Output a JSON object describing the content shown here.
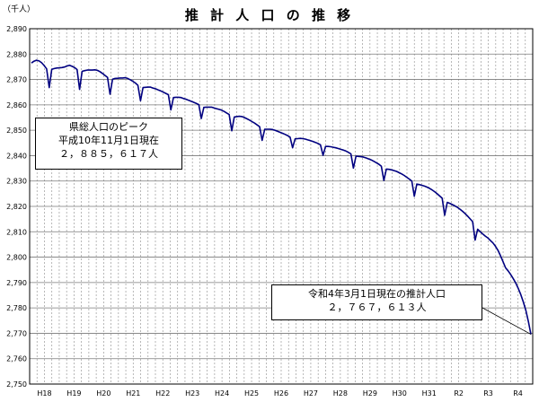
{
  "chart_data": {
    "type": "line",
    "title": "推 計 人 口 の 推 移",
    "unit_label": "（千人）",
    "ylim": [
      2760,
      2890
    ],
    "y_ticks": [
      "2,890",
      "2,880",
      "2,870",
      "2,860",
      "2,850",
      "2,840",
      "2,830",
      "2,820",
      "2,810",
      "2,800",
      "2,790",
      "2,780",
      "2,770",
      "2,760",
      "2,750"
    ],
    "x_ticks": [
      "H18",
      "H19",
      "H20",
      "H21",
      "H22",
      "H23",
      "H24",
      "H25",
      "H26",
      "H27",
      "H28",
      "H29",
      "H30",
      "H31",
      "R2",
      "R3",
      "R4"
    ],
    "grid": true,
    "line_color": "#000080",
    "series": [
      {
        "values": [
          2876.5,
          2877.2,
          2877.6,
          2877.3,
          2876.6,
          2875.5,
          2874.2,
          2866.8,
          2874.0,
          2874.3,
          2874.5,
          2874.6,
          2874.7,
          2874.9,
          2875.3,
          2875.6,
          2875.2,
          2874.7,
          2873.9,
          2866.1,
          2873.2,
          2873.5,
          2873.7,
          2873.7,
          2873.7,
          2873.8,
          2873.6,
          2873.1,
          2872.4,
          2871.6,
          2870.8,
          2864.2,
          2870.1,
          2870.4,
          2870.5,
          2870.6,
          2870.6,
          2870.7,
          2870.4,
          2869.9,
          2869.3,
          2868.6,
          2867.7,
          2861.6,
          2866.8,
          2866.9,
          2867.0,
          2867.0,
          2866.6,
          2866.3,
          2865.9,
          2865.5,
          2865.0,
          2864.5,
          2864.0,
          2858.0,
          2862.9,
          2863.0,
          2863.0,
          2862.9,
          2862.5,
          2862.2,
          2861.8,
          2861.4,
          2861.0,
          2860.6,
          2860.1,
          2854.6,
          2859.0,
          2859.1,
          2859.1,
          2859.1,
          2858.8,
          2858.5,
          2858.2,
          2857.9,
          2857.4,
          2856.8,
          2856.2,
          2849.8,
          2855.2,
          2855.4,
          2855.5,
          2855.4,
          2855.0,
          2854.5,
          2854.0,
          2853.4,
          2852.8,
          2852.1,
          2851.4,
          2846.0,
          2850.4,
          2850.4,
          2850.4,
          2850.3,
          2850.0,
          2849.6,
          2849.2,
          2848.8,
          2848.4,
          2847.9,
          2847.3,
          2843.1,
          2846.6,
          2846.7,
          2846.8,
          2846.7,
          2846.5,
          2846.2,
          2845.9,
          2845.6,
          2845.2,
          2844.8,
          2844.3,
          2840.1,
          2843.6,
          2843.6,
          2843.5,
          2843.3,
          2843.1,
          2842.8,
          2842.5,
          2842.2,
          2841.8,
          2841.3,
          2840.7,
          2835.1,
          2839.8,
          2839.7,
          2839.6,
          2839.4,
          2839.1,
          2838.7,
          2838.3,
          2837.8,
          2837.2,
          2836.6,
          2835.8,
          2830.2,
          2834.7,
          2834.6,
          2834.4,
          2834.1,
          2833.8,
          2833.3,
          2832.8,
          2832.2,
          2831.5,
          2830.8,
          2830.0,
          2824.0,
          2828.8,
          2828.6,
          2828.3,
          2828.0,
          2827.6,
          2827.1,
          2826.5,
          2825.8,
          2825.0,
          2824.1,
          2823.2,
          2816.5,
          2821.6,
          2821.2,
          2820.7,
          2820.2,
          2819.6,
          2818.9,
          2818.1,
          2817.2,
          2816.2,
          2815.1,
          2814.0,
          2806.7,
          2811.0,
          2810.0,
          2809.1,
          2808.3,
          2807.6,
          2806.6,
          2805.6,
          2804.3,
          2802.7,
          2800.6,
          2798.2,
          2795.8,
          2794.6,
          2793.2,
          2791.6,
          2789.8,
          2787.7,
          2785.3,
          2782.4,
          2779.0,
          2774.6,
          2769.6
        ]
      }
    ],
    "annotations": [
      {
        "lines": [
          "県総人口のピーク",
          "平成10年11月1日現在",
          "２，８８５，６１７人"
        ]
      },
      {
        "lines": [
          "令和4年3月1日現在の推計人口",
          "２，７６７，６１３人"
        ]
      }
    ]
  }
}
